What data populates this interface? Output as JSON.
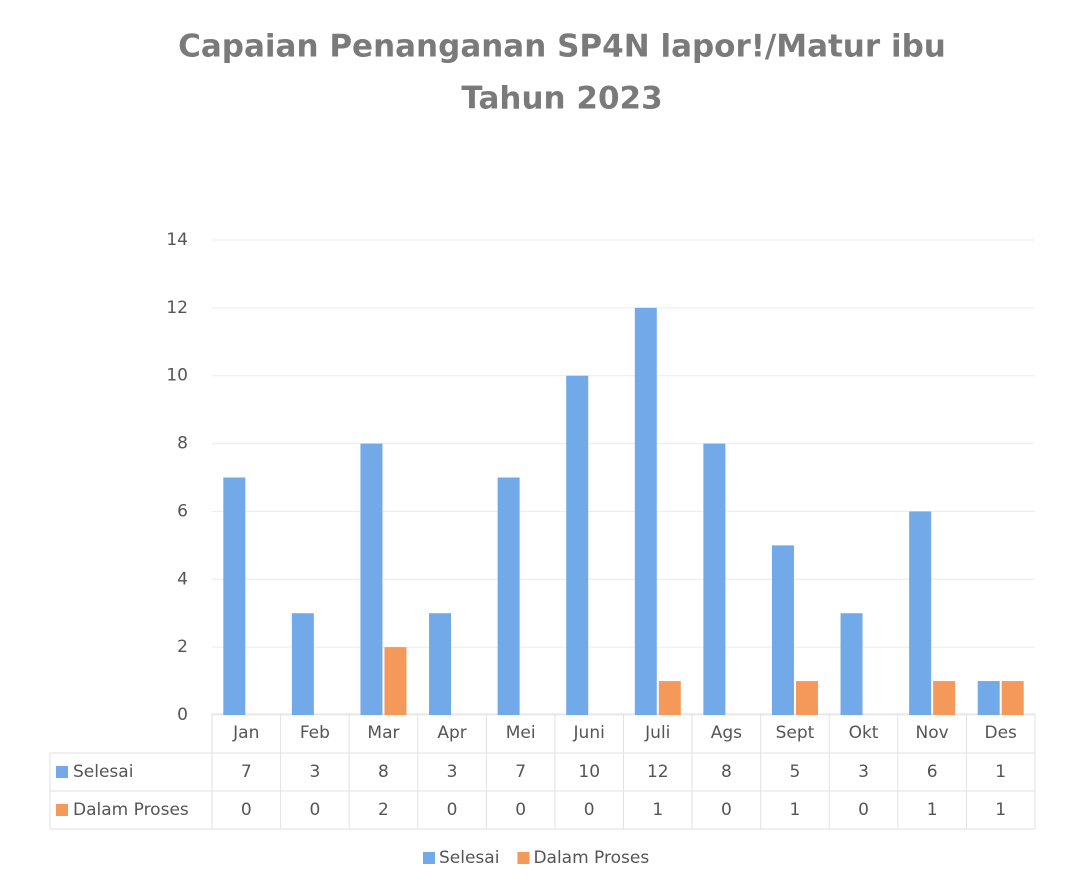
{
  "chart_data": {
    "type": "bar",
    "title": [
      "Capaian Penanganan SP4N lapor!/Matur ibu",
      "Tahun 2023"
    ],
    "categories": [
      "Jan",
      "Feb",
      "Mar",
      "Apr",
      "Mei",
      "Juni",
      "Juli",
      "Ags",
      "Sept",
      "Okt",
      "Nov",
      "Des"
    ],
    "series": [
      {
        "name": "Selesai",
        "color": "#72a9e9",
        "values": [
          7,
          3,
          8,
          3,
          7,
          10,
          12,
          8,
          5,
          3,
          6,
          1
        ]
      },
      {
        "name": "Dalam Proses",
        "color": "#f4995a",
        "values": [
          0,
          0,
          2,
          0,
          0,
          0,
          1,
          0,
          1,
          0,
          1,
          1
        ]
      }
    ],
    "ylim": [
      0,
      14
    ],
    "yticks": [
      0,
      2,
      4,
      6,
      8,
      10,
      12,
      14
    ],
    "grid": true,
    "legend": "bottom"
  }
}
